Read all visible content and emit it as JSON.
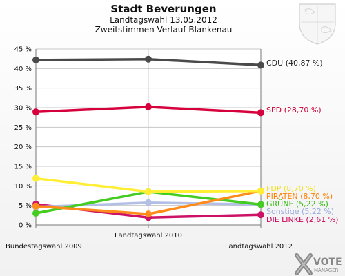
{
  "chart_data": {
    "type": "line",
    "title": "Stadt Beverungen",
    "subtitle1": "Landtagswahl 13.05.2012",
    "subtitle2": "Zweitstimmen Verlauf Blankenau",
    "x": [
      "Bundestagswahl 2009",
      "Landtagswahl 2010",
      "Landtagswahl 2012"
    ],
    "ylim": [
      0,
      45
    ],
    "y_ticks": [
      "0 %",
      "5 %",
      "10 %",
      "15 %",
      "20 %",
      "25 %",
      "30 %",
      "35 %",
      "40 %",
      "45 %"
    ],
    "grid": true,
    "series": [
      {
        "name": "CDU",
        "label": "CDU (40,87 %)",
        "color": "#4a4a4a",
        "label_color": "#222222",
        "values": [
          42.2,
          42.4,
          40.87
        ]
      },
      {
        "name": "SPD",
        "label": "SPD (28,70 %)",
        "color": "#d6003c",
        "label_color": "#cc0033",
        "values": [
          28.9,
          30.2,
          28.7
        ]
      },
      {
        "name": "FDP",
        "label": "FDP (8,70 %)",
        "color": "#ffee33",
        "label_color": "#f2e020",
        "values": [
          11.9,
          8.5,
          8.7
        ]
      },
      {
        "name": "PIRATEN",
        "label": "PIRATEN (8,70 %)",
        "color": "#ff8c1a",
        "label_color": "#ff8000",
        "values": [
          4.8,
          2.8,
          8.7
        ]
      },
      {
        "name": "GRÜNE",
        "label": "GRÜNE (5,22 %)",
        "color": "#44cc22",
        "label_color": "#33bb11",
        "values": [
          3.0,
          8.5,
          5.22
        ]
      },
      {
        "name": "Sonstige",
        "label": "Sonstige (5,22 %)",
        "color": "#b3c0e6",
        "label_color": "#99aadd",
        "values": [
          4.6,
          5.7,
          5.22
        ]
      },
      {
        "name": "DIE LINKE",
        "label": "DIE LINKE (2,61 %)",
        "color": "#cc1166",
        "label_color": "#cc0055",
        "values": [
          5.3,
          1.9,
          2.61
        ]
      }
    ]
  },
  "branding": {
    "logo_line1": "VOTE",
    "logo_line2": "MANAGER"
  },
  "colors": {
    "grid": "#c8c8c8",
    "axis": "#777777"
  }
}
